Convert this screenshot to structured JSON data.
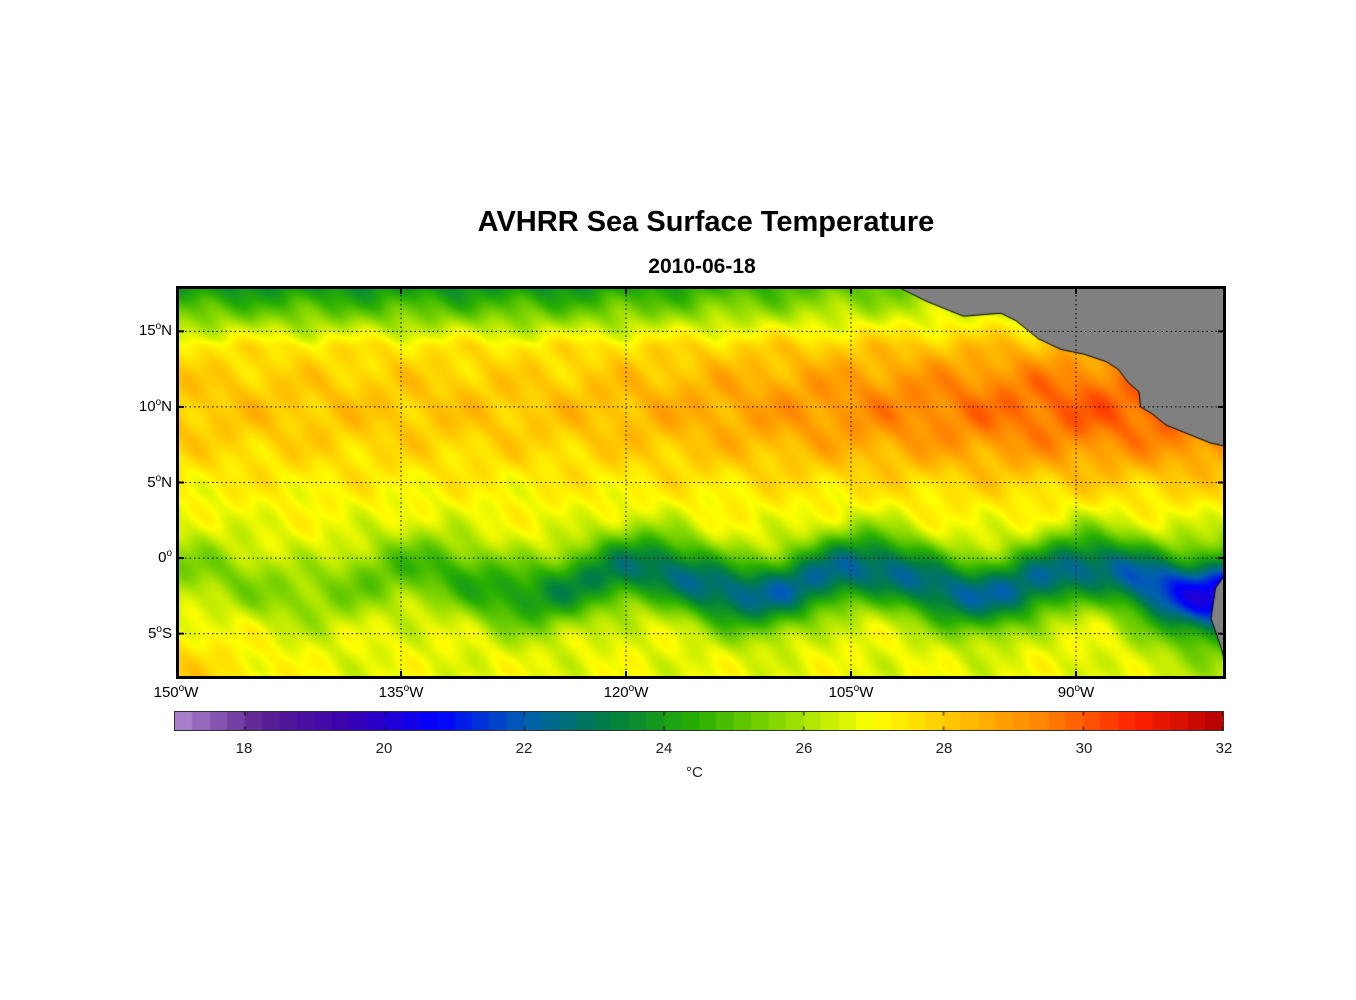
{
  "chart_data": {
    "type": "heatmap",
    "title": "AVHRR Sea Surface Temperature",
    "subtitle": "2010-06-18",
    "lon_range": [
      -150,
      -80
    ],
    "lat_range": [
      -8,
      18
    ],
    "lat_ticks": [
      {
        "value": 15,
        "label": "15",
        "hemi": "N"
      },
      {
        "value": 10,
        "label": "10",
        "hemi": "N"
      },
      {
        "value": 5,
        "label": "5",
        "hemi": "N"
      },
      {
        "value": 0,
        "label": "0",
        "hemi": ""
      },
      {
        "value": -5,
        "label": "5",
        "hemi": "S"
      }
    ],
    "lon_ticks": [
      {
        "value": -150,
        "label": "150",
        "hemi": "W"
      },
      {
        "value": -135,
        "label": "135",
        "hemi": "W"
      },
      {
        "value": -120,
        "label": "120",
        "hemi": "W"
      },
      {
        "value": -105,
        "label": "105",
        "hemi": "W"
      },
      {
        "value": -90,
        "label": "90",
        "hemi": "W"
      }
    ],
    "gridlines": "dotted",
    "colorbar": {
      "range": [
        17,
        32
      ],
      "ticks": [
        "18",
        "20",
        "22",
        "24",
        "26",
        "28",
        "30",
        "32"
      ],
      "units": "°C",
      "colors": [
        "#b088d0",
        "#5a2090",
        "#3a00b0",
        "#0000ff",
        "#0060b0",
        "#008040",
        "#2ab000",
        "#90dc00",
        "#ffff00",
        "#ffc000",
        "#ff8000",
        "#ff2000",
        "#b00000"
      ]
    },
    "sst_field_description": {
      "north_band": "cool 23-25 °C near 18N",
      "warm_pool": "28-30 °C between 5N-15N, peak east of 115W",
      "equatorial_tongue": "cold 21-23 °C along equator east of 125W",
      "south": "26-27 °C south of 3S"
    },
    "land_color": "#808080"
  }
}
